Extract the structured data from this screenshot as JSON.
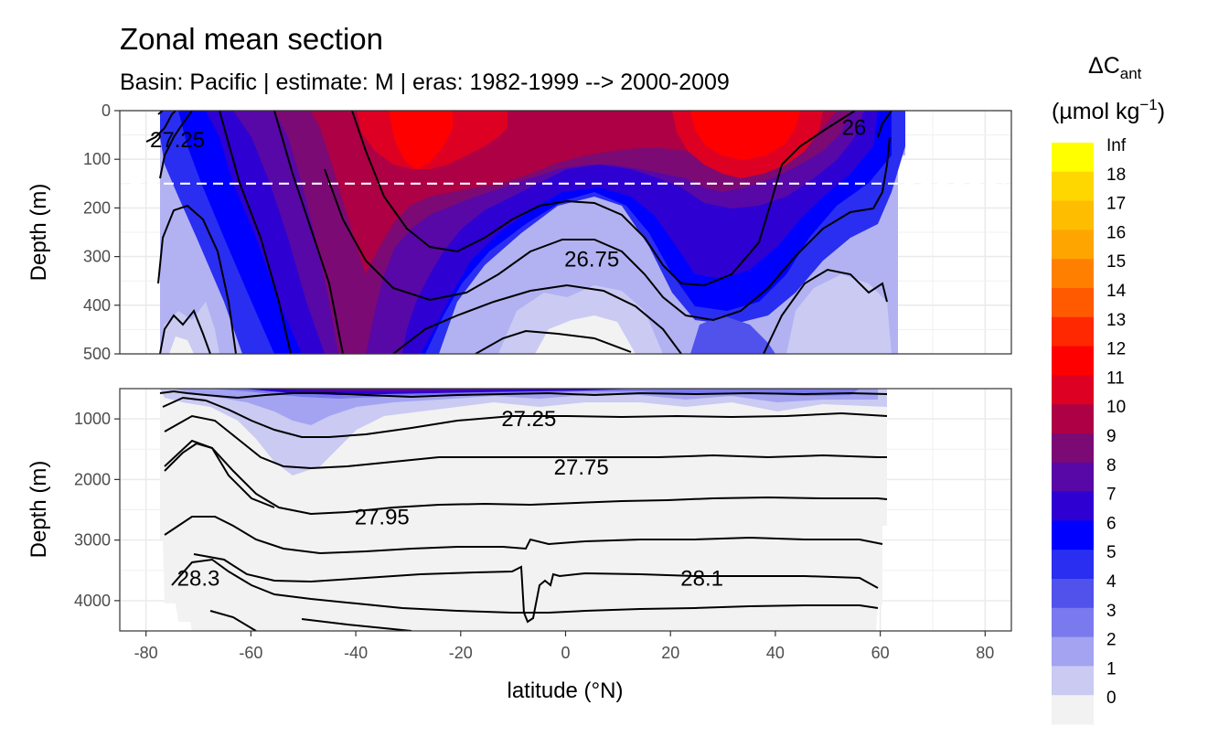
{
  "chart_data": {
    "type": "heatmap",
    "title": "Zonal mean section",
    "subtitle": "Basin: Pacific | estimate: M  | eras: 1982-1999 --> 2000-2009",
    "xlabel": "latitude (°N)",
    "ylabel": "Depth (m)",
    "x_ticks": [
      "-80",
      "-60",
      "-40",
      "-20",
      "0",
      "20",
      "40",
      "60",
      "80"
    ],
    "x_range": [
      -85,
      85
    ],
    "panels": [
      {
        "name": "upper",
        "ylim": [
          0,
          500
        ],
        "y_ticks": [
          "0",
          "100",
          "200",
          "300",
          "400",
          "500"
        ]
      },
      {
        "name": "lower",
        "ylim": [
          500,
          4500
        ],
        "y_ticks": [
          "1000",
          "2000",
          "3000",
          "4000"
        ]
      }
    ],
    "reference_line": {
      "depth": 150,
      "style": "dashed",
      "color": "#ffffff"
    },
    "legend": {
      "title_main": "ΔC",
      "title_sub": "ant",
      "units_prefix": "(µmol kg",
      "units_exp": "−1",
      "units_suffix": ")",
      "placement": "right",
      "levels": [
        {
          "label": "Inf",
          "color": "#ffff00"
        },
        {
          "label": "18",
          "color": "#ffd700"
        },
        {
          "label": "17",
          "color": "#ffbd00"
        },
        {
          "label": "16",
          "color": "#ffa500"
        },
        {
          "label": "15",
          "color": "#ff7f00"
        },
        {
          "label": "14",
          "color": "#ff5a00"
        },
        {
          "label": "13",
          "color": "#ff2800"
        },
        {
          "label": "12",
          "color": "#ff0000"
        },
        {
          "label": "11",
          "color": "#dd0022"
        },
        {
          "label": "10",
          "color": "#ad0045"
        },
        {
          "label": "9",
          "color": "#7c0a74"
        },
        {
          "label": "8",
          "color": "#5808a6"
        },
        {
          "label": "7",
          "color": "#2e00d2"
        },
        {
          "label": "6",
          "color": "#0000ff"
        },
        {
          "label": "5",
          "color": "#2a2ef0"
        },
        {
          "label": "4",
          "color": "#5151eb"
        },
        {
          "label": "3",
          "color": "#7a7aee"
        },
        {
          "label": "2",
          "color": "#a3a3f1"
        },
        {
          "label": "1",
          "color": "#cacaf3"
        },
        {
          "label": "0",
          "color": "#f2f2f2"
        }
      ]
    },
    "contour_labels": [
      {
        "text": "27.25",
        "panel": "upper",
        "lat": -74,
        "depth": 60
      },
      {
        "text": "26",
        "panel": "upper",
        "lat": 55,
        "depth": 35
      },
      {
        "text": "26.75",
        "panel": "upper",
        "lat": 5,
        "depth": 305
      },
      {
        "text": "27.25",
        "panel": "lower",
        "lat": -7,
        "depth": 1000
      },
      {
        "text": "27.75",
        "panel": "lower",
        "lat": 3,
        "depth": 1800
      },
      {
        "text": "27.95",
        "panel": "lower",
        "lat": -35,
        "depth": 2620
      },
      {
        "text": "28.3",
        "panel": "lower",
        "lat": -70,
        "depth": 3630
      },
      {
        "text": "28.1",
        "panel": "lower",
        "lat": 26,
        "depth": 3630
      }
    ],
    "grid": true
  }
}
